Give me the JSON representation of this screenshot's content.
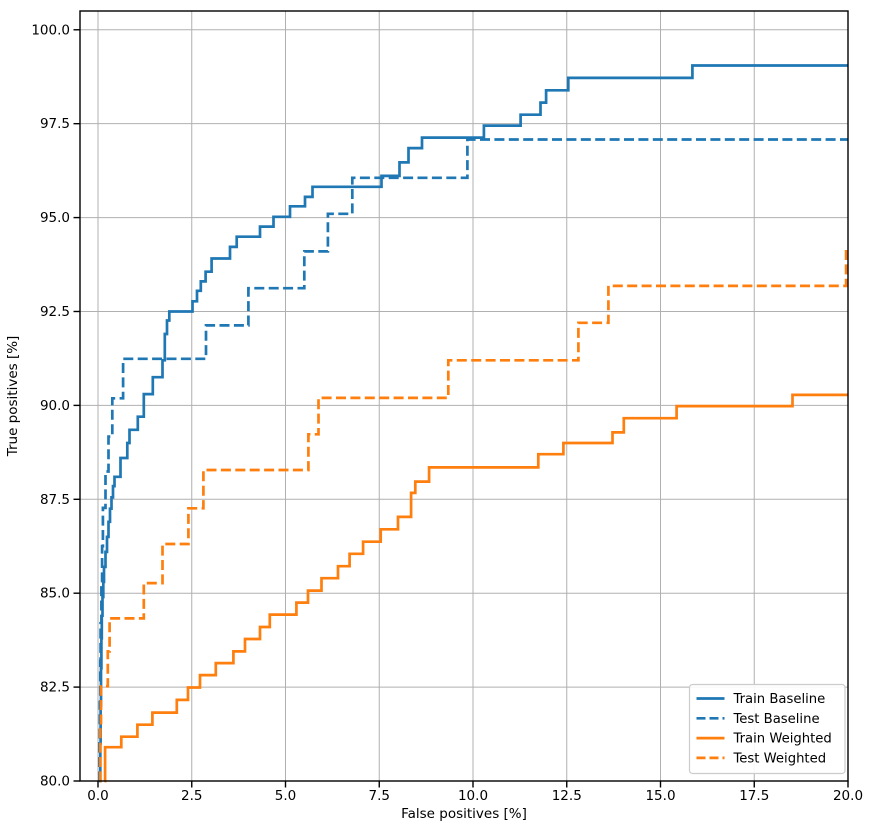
{
  "chart_data": {
    "type": "line",
    "subtype": "step-post",
    "title": "",
    "xlabel": "False positives [%]",
    "ylabel": "True positives [%]",
    "xlim": [
      -0.48,
      20.0
    ],
    "ylim": [
      80.0,
      100.5
    ],
    "x_end": 20.0,
    "grid": true,
    "grid_color": "#b0b0b0",
    "spine_color": "#000000",
    "background_color": "#ffffff",
    "x_ticks": [
      0,
      2.5,
      5,
      7.5,
      10,
      12.5,
      15,
      17.5,
      20
    ],
    "x_tick_labels": [
      "0.0",
      "2.5",
      "5.0",
      "7.5",
      "10.0",
      "12.5",
      "15.0",
      "17.5",
      "20.0"
    ],
    "y_ticks": [
      80,
      82.5,
      85,
      87.5,
      90,
      92.5,
      95,
      97.5,
      100
    ],
    "y_tick_labels": [
      "80.0",
      "82.5",
      "85.0",
      "87.5",
      "90.0",
      "92.5",
      "95.0",
      "97.5",
      "100.0"
    ],
    "legend": {
      "position": "lower right",
      "border_color": "#cccccc",
      "background": "#ffffff",
      "entries": [
        "Train Baseline",
        "Test Baseline",
        "Train Weighted",
        "Test Weighted"
      ]
    },
    "series": [
      {
        "name": "Train Baseline",
        "color": "#1f77b4",
        "style": "solid",
        "points": [
          [
            0.05,
            80
          ],
          [
            0.06,
            81.0
          ],
          [
            0.07,
            82.0
          ],
          [
            0.08,
            83.0
          ],
          [
            0.09,
            83.8
          ],
          [
            0.1,
            84.4
          ],
          [
            0.12,
            84.9
          ],
          [
            0.14,
            85.3
          ],
          [
            0.16,
            85.7
          ],
          [
            0.2,
            86.1
          ],
          [
            0.24,
            86.5
          ],
          [
            0.28,
            86.9
          ],
          [
            0.32,
            87.25
          ],
          [
            0.36,
            87.55
          ],
          [
            0.4,
            87.85
          ],
          [
            0.44,
            88.1
          ],
          [
            0.6,
            88.6
          ],
          [
            0.78,
            89.0
          ],
          [
            0.84,
            89.35
          ],
          [
            1.06,
            89.7
          ],
          [
            1.22,
            90.3
          ],
          [
            1.46,
            90.75
          ],
          [
            1.72,
            91.2
          ],
          [
            1.78,
            91.9
          ],
          [
            1.84,
            92.26
          ],
          [
            1.9,
            92.5
          ],
          [
            2.52,
            92.77
          ],
          [
            2.64,
            93.05
          ],
          [
            2.74,
            93.3
          ],
          [
            2.87,
            93.56
          ],
          [
            3.03,
            93.91
          ],
          [
            3.52,
            94.22
          ],
          [
            3.7,
            94.49
          ],
          [
            4.32,
            94.76
          ],
          [
            4.68,
            95.02
          ],
          [
            5.12,
            95.3
          ],
          [
            5.52,
            95.55
          ],
          [
            5.72,
            95.82
          ],
          [
            7.56,
            96.11
          ],
          [
            8.04,
            96.47
          ],
          [
            8.28,
            96.85
          ],
          [
            8.64,
            97.13
          ],
          [
            10.29,
            97.45
          ],
          [
            11.27,
            97.74
          ],
          [
            11.8,
            98.06
          ],
          [
            11.95,
            98.39
          ],
          [
            12.54,
            98.72
          ],
          [
            15.85,
            99.05
          ]
        ]
      },
      {
        "name": "Test Baseline",
        "color": "#1f77b4",
        "style": "dashed",
        "points": [
          [
            0.03,
            80
          ],
          [
            0.04,
            81.0
          ],
          [
            0.05,
            82.1
          ],
          [
            0.06,
            83.2
          ],
          [
            0.07,
            84.2
          ],
          [
            0.09,
            85.2
          ],
          [
            0.11,
            86.25
          ],
          [
            0.13,
            87.27
          ],
          [
            0.2,
            88.24
          ],
          [
            0.28,
            89.17
          ],
          [
            0.38,
            90.19
          ],
          [
            0.67,
            91.24
          ],
          [
            2.88,
            92.13
          ],
          [
            4.01,
            93.12
          ],
          [
            5.5,
            94.1
          ],
          [
            6.13,
            95.1
          ],
          [
            6.78,
            96.06
          ],
          [
            9.85,
            97.08
          ]
        ]
      },
      {
        "name": "Train Weighted",
        "color": "#ff7f0e",
        "style": "solid",
        "points": [
          [
            0.17,
            80
          ],
          [
            0.19,
            80.9
          ],
          [
            0.62,
            81.18
          ],
          [
            1.05,
            81.5
          ],
          [
            1.45,
            81.82
          ],
          [
            2.1,
            82.16
          ],
          [
            2.4,
            82.49
          ],
          [
            2.72,
            82.82
          ],
          [
            3.14,
            83.14
          ],
          [
            3.61,
            83.45
          ],
          [
            3.92,
            83.78
          ],
          [
            4.32,
            84.1
          ],
          [
            4.58,
            84.43
          ],
          [
            5.29,
            84.75
          ],
          [
            5.6,
            85.07
          ],
          [
            5.96,
            85.4
          ],
          [
            6.4,
            85.72
          ],
          [
            6.71,
            86.05
          ],
          [
            7.07,
            86.37
          ],
          [
            7.54,
            86.7
          ],
          [
            8.0,
            87.03
          ],
          [
            8.35,
            87.67
          ],
          [
            8.46,
            87.97
          ],
          [
            8.83,
            88.35
          ],
          [
            11.74,
            88.7
          ],
          [
            12.41,
            89.0
          ],
          [
            13.72,
            89.28
          ],
          [
            14.02,
            89.66
          ],
          [
            15.43,
            89.98
          ],
          [
            18.52,
            90.28
          ]
        ]
      },
      {
        "name": "Test Weighted",
        "color": "#ff7f0e",
        "style": "dashed",
        "points": [
          [
            0.05,
            80
          ],
          [
            0.06,
            81.5
          ],
          [
            0.08,
            82.52
          ],
          [
            0.26,
            83.45
          ],
          [
            0.31,
            84.33
          ],
          [
            1.22,
            85.27
          ],
          [
            1.72,
            86.31
          ],
          [
            2.41,
            87.26
          ],
          [
            2.81,
            88.28
          ],
          [
            5.61,
            89.23
          ],
          [
            5.88,
            90.2
          ],
          [
            9.34,
            91.2
          ],
          [
            12.81,
            92.2
          ],
          [
            13.61,
            93.18
          ],
          [
            19.95,
            94.16
          ]
        ]
      }
    ]
  }
}
